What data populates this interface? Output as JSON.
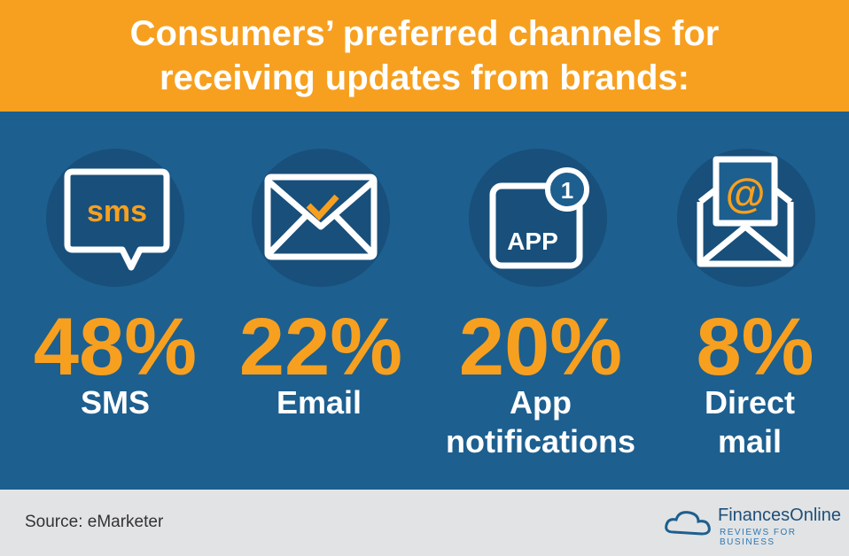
{
  "header": {
    "title_lines": [
      "Consumers’ preferred channels for",
      "receiving updates from brands:"
    ]
  },
  "stats": [
    {
      "icon_text": "sms",
      "percent": "48%",
      "label_lines": [
        "SMS"
      ]
    },
    {
      "percent": "22%",
      "label_lines": [
        "Email"
      ]
    },
    {
      "icon_text": "APP",
      "badge": "1",
      "percent": "20%",
      "label_lines": [
        "App",
        "notifications"
      ]
    },
    {
      "icon_text": "@",
      "percent": "8%",
      "label_lines": [
        "Direct",
        "mail"
      ]
    }
  ],
  "footer": {
    "source": "Source: eMarketer",
    "brand": "FinancesOnline",
    "tagline": "REVIEWS FOR BUSINESS"
  }
}
